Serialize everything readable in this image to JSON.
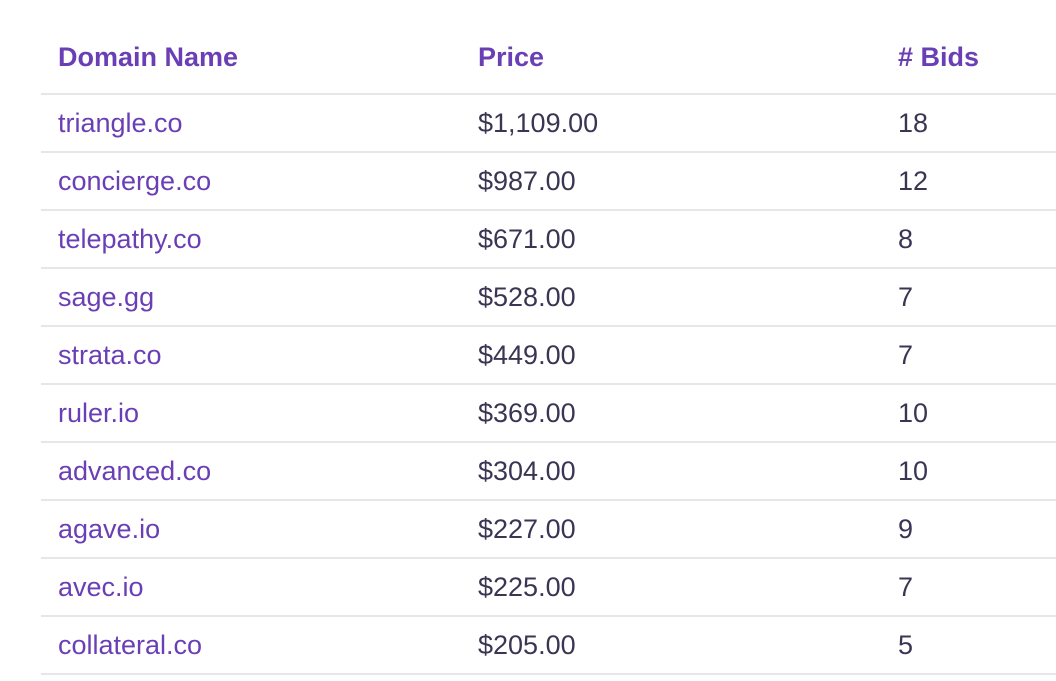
{
  "table": {
    "headers": {
      "domain": "Domain Name",
      "price": "Price",
      "bids": "# Bids"
    },
    "rows": [
      {
        "domain": "triangle.co",
        "price": "$1,109.00",
        "bids": "18"
      },
      {
        "domain": "concierge.co",
        "price": "$987.00",
        "bids": "12"
      },
      {
        "domain": "telepathy.co",
        "price": "$671.00",
        "bids": "8"
      },
      {
        "domain": "sage.gg",
        "price": "$528.00",
        "bids": "7"
      },
      {
        "domain": "strata.co",
        "price": "$449.00",
        "bids": "7"
      },
      {
        "domain": "ruler.io",
        "price": "$369.00",
        "bids": "10"
      },
      {
        "domain": "advanced.co",
        "price": "$304.00",
        "bids": "10"
      },
      {
        "domain": "agave.io",
        "price": "$227.00",
        "bids": "9"
      },
      {
        "domain": "avec.io",
        "price": "$225.00",
        "bids": "7"
      },
      {
        "domain": "collateral.co",
        "price": "$205.00",
        "bids": "5"
      }
    ]
  },
  "colors": {
    "accent": "#6a3fb5",
    "text": "#3b3553",
    "divider": "#e6e6ea"
  }
}
